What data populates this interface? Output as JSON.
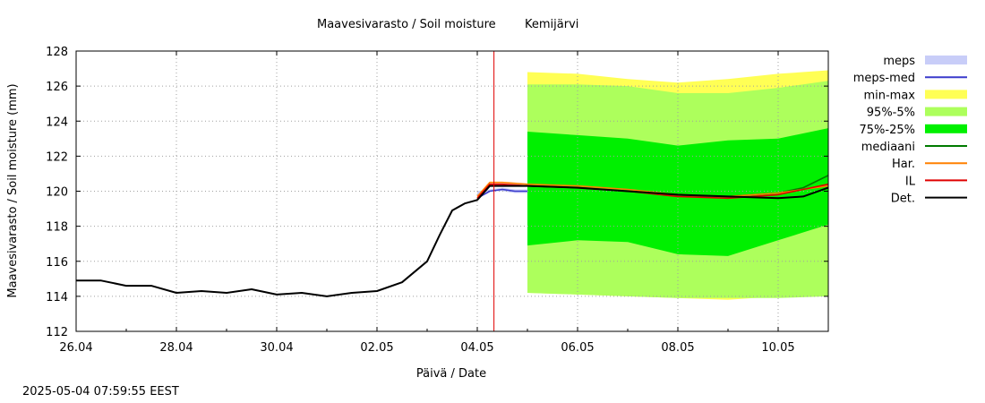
{
  "footer": {
    "timestamp": "2025-05-04 07:59:55 EEST"
  },
  "chart_data": {
    "type": "line",
    "title": "Maavesivarasto / Soil moisture",
    "station": "Kemijärvi",
    "xlabel": "Päivä / Date",
    "ylabel": "Maavesivarasto / Soil moisture (mm)",
    "xlim": [
      "2025-04-26",
      "2025-05-11"
    ],
    "ylim": [
      112,
      128
    ],
    "x_ticks": [
      "26.04",
      "28.04",
      "30.04",
      "02.05",
      "04.05",
      "06.05",
      "08.05",
      "10.05"
    ],
    "y_ticks": [
      112,
      114,
      116,
      118,
      120,
      122,
      124,
      126,
      128
    ],
    "grid": true,
    "legend_position": "right",
    "current_time_marker": "2025-05-04 07:59",
    "legend": [
      {
        "name": "meps",
        "kind": "band",
        "color": "#c8cdf8"
      },
      {
        "name": "meps-med",
        "kind": "line",
        "color": "#3a3acc"
      },
      {
        "name": "min-max",
        "kind": "band",
        "color": "#ffff55"
      },
      {
        "name": "95%-5%",
        "kind": "band",
        "color": "#adff5c"
      },
      {
        "name": "75%-25%",
        "kind": "band",
        "color": "#00f000"
      },
      {
        "name": "mediaani",
        "kind": "line",
        "color": "#007a00"
      },
      {
        "name": "Har.",
        "kind": "line",
        "color": "#ff8000"
      },
      {
        "name": "IL",
        "kind": "line",
        "color": "#e00000"
      },
      {
        "name": "Det.",
        "kind": "line",
        "color": "#000000"
      }
    ],
    "bands": {
      "x": [
        "2025-05-05",
        "2025-05-06",
        "2025-05-07",
        "2025-05-08",
        "2025-05-09",
        "2025-05-10",
        "2025-05-11"
      ],
      "min_max": {
        "low": [
          114.2,
          114.1,
          114.0,
          113.9,
          113.8,
          114.0,
          114.3
        ],
        "high": [
          126.8,
          126.7,
          126.4,
          126.2,
          126.4,
          126.7,
          126.9
        ]
      },
      "p95_p5": {
        "low": [
          114.2,
          114.1,
          114.0,
          113.9,
          113.9,
          113.9,
          114.0
        ],
        "high": [
          126.1,
          126.1,
          126.0,
          125.6,
          125.6,
          125.9,
          126.3
        ]
      },
      "p75_p25": {
        "low": [
          116.9,
          117.2,
          117.1,
          116.4,
          116.3,
          117.2,
          118.1
        ],
        "high": [
          123.4,
          123.2,
          123.0,
          122.6,
          122.9,
          123.0,
          123.6
        ]
      },
      "meps": {
        "x": [
          "2025-05-04",
          "2025-05-04 06:00",
          "2025-05-04 12:00",
          "2025-05-04 18:00",
          "2025-05-05"
        ],
        "low": [
          119.8,
          120.0,
          120.0,
          119.9,
          119.9
        ],
        "high": [
          120.0,
          120.1,
          120.2,
          120.1,
          120.1
        ]
      }
    },
    "series": [
      {
        "name": "Det.",
        "x": [
          "2025-04-26",
          "2025-04-26 12:00",
          "2025-04-27",
          "2025-04-27 12:00",
          "2025-04-28",
          "2025-04-28 12:00",
          "2025-04-29",
          "2025-04-29 12:00",
          "2025-04-30",
          "2025-04-30 12:00",
          "2025-05-01",
          "2025-05-01 12:00",
          "2025-05-02",
          "2025-05-02 12:00",
          "2025-05-03",
          "2025-05-03 06:00",
          "2025-05-03 12:00",
          "2025-05-03 18:00",
          "2025-05-04",
          "2025-05-04 06:00",
          "2025-05-04 12:00",
          "2025-05-05",
          "2025-05-06",
          "2025-05-07",
          "2025-05-08",
          "2025-05-09",
          "2025-05-10",
          "2025-05-10 12:00",
          "2025-05-11"
        ],
        "values": [
          114.9,
          114.9,
          114.6,
          114.6,
          114.2,
          114.3,
          114.2,
          114.4,
          114.1,
          114.2,
          114.0,
          114.2,
          114.3,
          114.8,
          116.0,
          117.5,
          118.9,
          119.3,
          119.5,
          120.3,
          120.3,
          120.3,
          120.2,
          120.0,
          119.8,
          119.7,
          119.6,
          119.7,
          120.2
        ]
      },
      {
        "name": "IL",
        "x": [
          "2025-05-04",
          "2025-05-04 06:00",
          "2025-05-04 12:00",
          "2025-05-05",
          "2025-05-06",
          "2025-05-07",
          "2025-05-08",
          "2025-05-09",
          "2025-05-10",
          "2025-05-10 12:00",
          "2025-05-11"
        ],
        "values": [
          119.6,
          120.4,
          120.4,
          120.3,
          120.2,
          120.0,
          119.7,
          119.6,
          119.8,
          120.1,
          120.4
        ]
      },
      {
        "name": "Har.",
        "x": [
          "2025-05-04",
          "2025-05-04 06:00",
          "2025-05-04 12:00",
          "2025-05-05",
          "2025-05-06",
          "2025-05-07",
          "2025-05-08",
          "2025-05-09",
          "2025-05-10",
          "2025-05-10 12:00",
          "2025-05-11"
        ],
        "values": [
          119.7,
          120.5,
          120.5,
          120.4,
          120.3,
          120.1,
          119.8,
          119.7,
          119.9,
          120.1,
          120.3
        ]
      },
      {
        "name": "mediaani",
        "x": [
          "2025-05-05",
          "2025-05-06",
          "2025-05-07",
          "2025-05-08",
          "2025-05-09",
          "2025-05-10",
          "2025-05-10 12:00",
          "2025-05-11"
        ],
        "values": [
          120.3,
          120.2,
          120.0,
          119.8,
          119.7,
          119.9,
          120.2,
          120.9
        ]
      },
      {
        "name": "meps-med",
        "x": [
          "2025-05-04",
          "2025-05-04 06:00",
          "2025-05-04 12:00",
          "2025-05-04 18:00",
          "2025-05-05"
        ],
        "values": [
          119.6,
          120.0,
          120.1,
          120.0,
          120.0
        ]
      }
    ]
  }
}
